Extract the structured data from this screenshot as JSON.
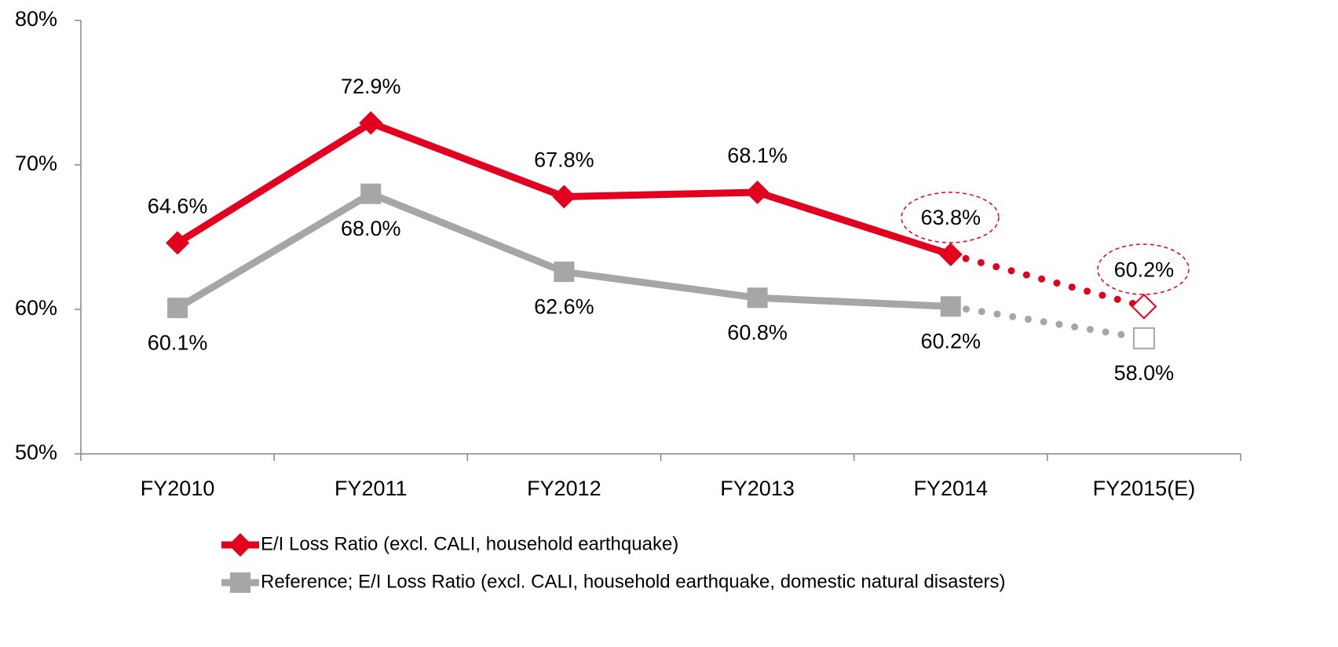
{
  "chart_data": {
    "type": "line",
    "categories": [
      "FY2010",
      "FY2011",
      "FY2012",
      "FY2013",
      "FY2014",
      "FY2015(E)"
    ],
    "series": [
      {
        "name": "E/I Loss Ratio (excl. CALI, household earthquake)",
        "color": "#e3001e",
        "values": [
          64.6,
          72.9,
          67.8,
          68.1,
          63.8,
          60.2
        ],
        "value_labels": [
          "64.6%",
          "72.9%",
          "67.8%",
          "68.1%",
          "63.8%",
          "60.2%"
        ]
      },
      {
        "name": "Reference; E/I Loss Ratio (excl. CALI, household earthquake, domestic natural disasters)",
        "color": "#a6a6a6",
        "values": [
          60.1,
          68.0,
          62.6,
          60.8,
          60.2,
          58.0
        ],
        "value_labels": [
          "60.1%",
          "68.0%",
          "62.6%",
          "60.8%",
          "60.2%",
          "58.0%"
        ]
      }
    ],
    "ylim": [
      50,
      80
    ],
    "yticks": [
      {
        "value": 50,
        "label": "50%"
      },
      {
        "value": 60,
        "label": "60%"
      },
      {
        "value": 70,
        "label": "70%"
      },
      {
        "value": 80,
        "label": "80%"
      }
    ],
    "legend": "bottom"
  }
}
